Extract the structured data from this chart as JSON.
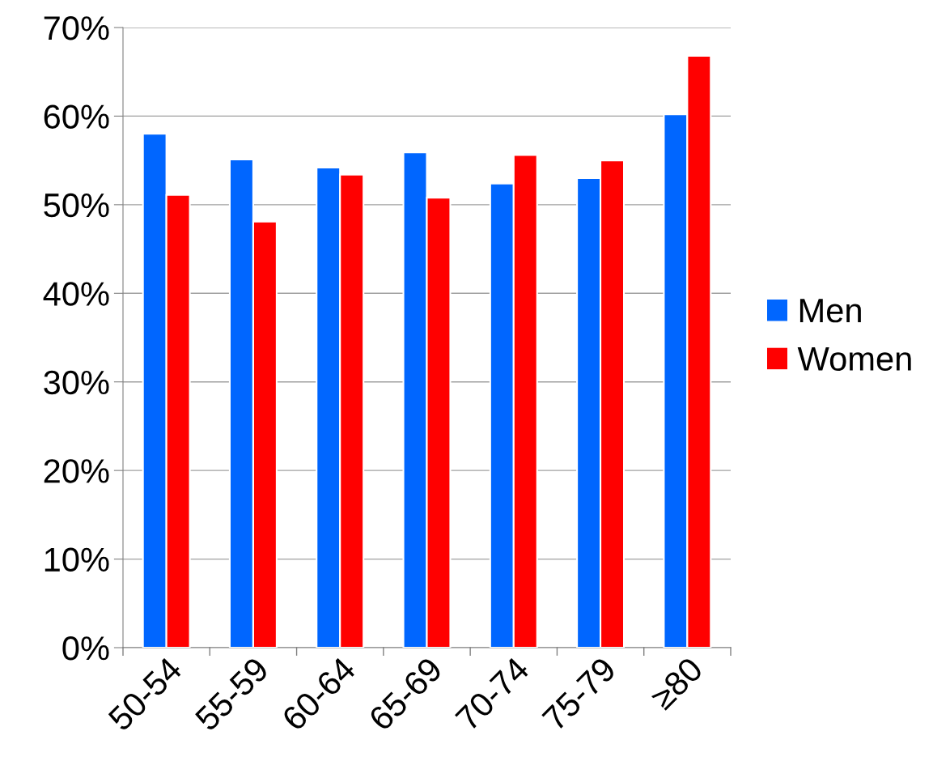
{
  "chart_data": {
    "type": "bar",
    "categories": [
      "50-54",
      "55-59",
      "60-64",
      "65-69",
      "70-74",
      "75-79",
      "≥80"
    ],
    "series": [
      {
        "name": "Men",
        "color": "#0066ff",
        "values": [
          58.0,
          55.1,
          54.2,
          55.9,
          52.4,
          53.0,
          60.2
        ]
      },
      {
        "name": "Women",
        "color": "#ff0000",
        "values": [
          51.1,
          48.1,
          53.4,
          50.8,
          55.6,
          55.0,
          66.8
        ]
      }
    ],
    "ylim": [
      0,
      70
    ],
    "yticks": [
      {
        "value": 0,
        "label": "0%"
      },
      {
        "value": 10,
        "label": "10%"
      },
      {
        "value": 20,
        "label": "20%"
      },
      {
        "value": 30,
        "label": "30%"
      },
      {
        "value": 40,
        "label": "40%"
      },
      {
        "value": 50,
        "label": "50%"
      },
      {
        "value": 60,
        "label": "60%"
      },
      {
        "value": 70,
        "label": "70%"
      }
    ],
    "grid": "y",
    "legend": "right"
  }
}
